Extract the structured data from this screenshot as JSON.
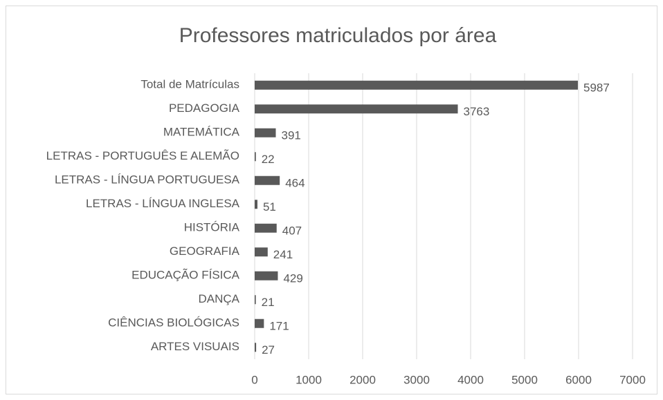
{
  "chart_data": {
    "type": "bar",
    "orientation": "horizontal",
    "title": "Professores matriculados por área",
    "categories": [
      "Total de Matrículas",
      "PEDAGOGIA",
      "MATEMÁTICA",
      "LETRAS - PORTUGUÊS E ALEMÃO",
      "LETRAS - LÍNGUA PORTUGUESA",
      "LETRAS - LÍNGUA INGLESA",
      "HISTÓRIA",
      "GEOGRAFIA",
      "EDUCAÇÃO FÍSICA",
      "DANÇA",
      "CIÊNCIAS BIOLÓGICAS",
      "ARTES VISUAIS"
    ],
    "values": [
      5987,
      3763,
      391,
      22,
      464,
      51,
      407,
      241,
      429,
      21,
      171,
      27
    ],
    "color": "#595959",
    "xlim": [
      0,
      7000
    ],
    "xticks": [
      0,
      1000,
      2000,
      3000,
      4000,
      5000,
      6000,
      7000
    ],
    "grid": true
  }
}
